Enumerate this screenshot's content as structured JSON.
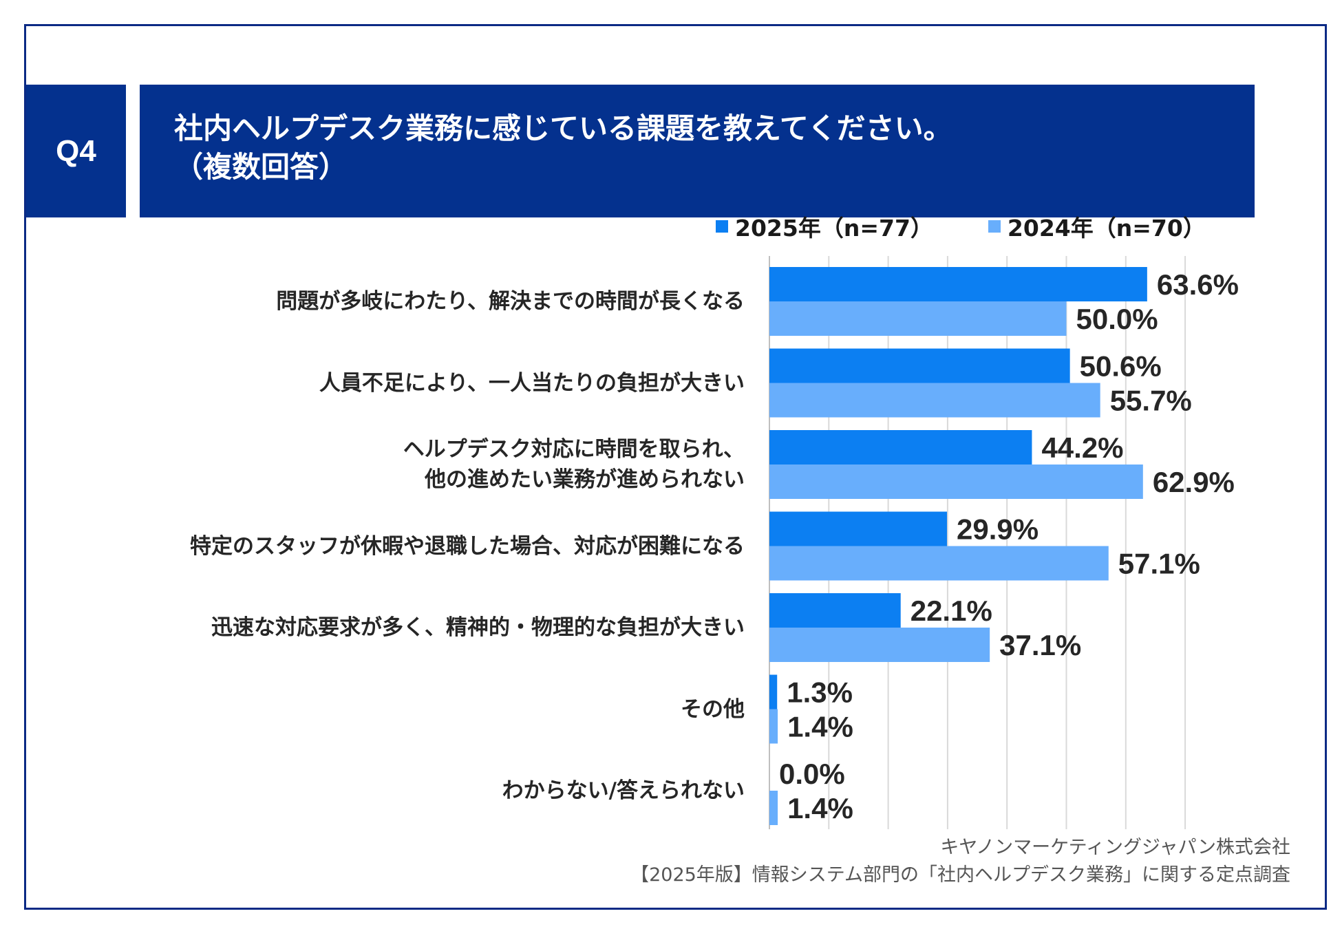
{
  "header": {
    "question_number": "Q4",
    "title_line1": "社内ヘルプデスク業務に感じている課題を教えてください。",
    "title_line2": "（複数回答）"
  },
  "colors": {
    "navy": "#04318e",
    "series_2025": "#0c7ff2",
    "series_2024": "#68aefc",
    "grid": "#d9d9d9"
  },
  "chart_data": {
    "type": "bar",
    "orientation": "horizontal",
    "xlim": [
      0,
      70
    ],
    "grid": true,
    "legend": "top-right",
    "categories": [
      [
        "問題が多岐にわたり、解決までの時間が長くなる"
      ],
      [
        "人員不足により、一人当たりの負担が大きい"
      ],
      [
        "ヘルプデスク対応に時間を取られ、",
        "他の進めたい業務が進められない"
      ],
      [
        "特定のスタッフが休暇や退職した場合、対応が困難になる"
      ],
      [
        "迅速な対応要求が多く、精神的・物理的な負担が大きい"
      ],
      [
        "その他"
      ],
      [
        "わからない/答えられない"
      ]
    ],
    "series": [
      {
        "name": "2025年（n=77）",
        "values": [
          63.6,
          50.6,
          44.2,
          29.9,
          22.1,
          1.3,
          0.0
        ],
        "labels": [
          "63.6%",
          "50.6%",
          "44.2%",
          "29.9%",
          "22.1%",
          "1.3%",
          "0.0%"
        ]
      },
      {
        "name": "2024年（n=70）",
        "values": [
          50.0,
          55.7,
          62.9,
          57.1,
          37.1,
          1.4,
          1.4
        ],
        "labels": [
          "50.0%",
          "55.7%",
          "62.9%",
          "57.1%",
          "37.1%",
          "1.4%",
          "1.4%"
        ]
      }
    ]
  },
  "source": {
    "line1": "キヤノンマーケティングジャパン株式会社",
    "line2": "【2025年版】情報システム部門の「社内ヘルプデスク業務」に関する定点調査"
  }
}
